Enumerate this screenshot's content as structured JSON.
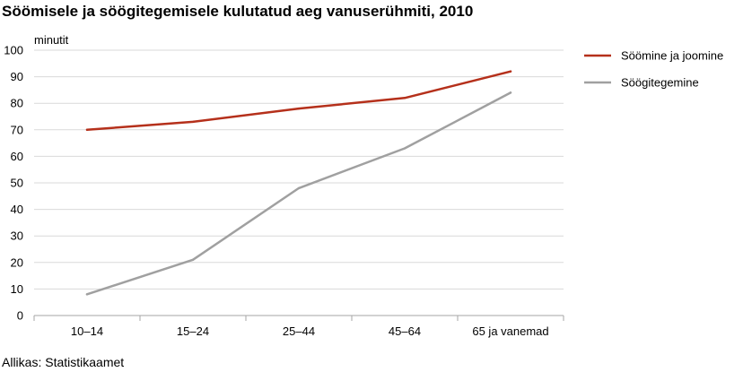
{
  "chart_data": {
    "type": "line",
    "title": "Söömisele ja söögitegemisele kulutatud aeg vanuserühmiti, 2010",
    "ylabel": "minutit",
    "xlabel": "",
    "categories": [
      "10–14",
      "15–24",
      "25–44",
      "45–64",
      "65 ja vanemad"
    ],
    "series": [
      {
        "name": "Söömine ja joomine",
        "color": "#b5301b",
        "values": [
          70,
          73,
          78,
          82,
          92
        ]
      },
      {
        "name": "Söögitegemine",
        "color": "#a0a0a0",
        "values": [
          8,
          21,
          48,
          63,
          84
        ]
      }
    ],
    "ylim": [
      0,
      100
    ],
    "yticks": [
      0,
      10,
      20,
      30,
      40,
      50,
      60,
      70,
      80,
      90,
      100
    ],
    "grid": true,
    "legend": "top-right",
    "source": "Allikas: Statistikaamet"
  },
  "colors": {
    "grid": "#d9d9d9",
    "axis": "#a6a6a6"
  }
}
